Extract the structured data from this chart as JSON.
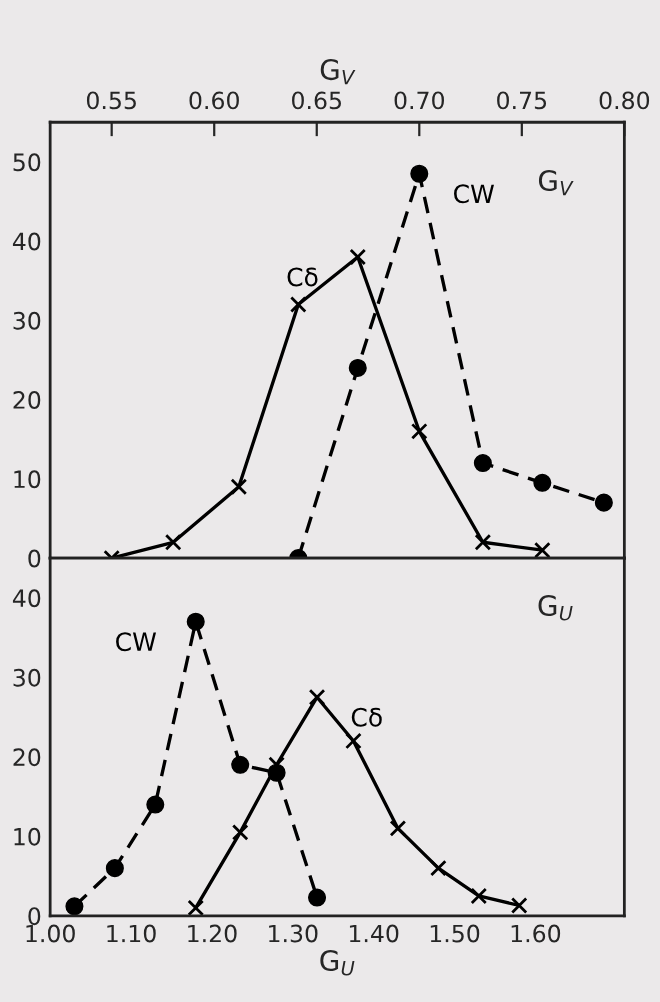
{
  "chart_data": [
    {
      "type": "line",
      "xlabel": "G$_{V}$",
      "xlim": [
        0.52,
        0.8
      ],
      "xticks": [
        0.55,
        {
          "value": 0.6,
          "label": "0.60"
        },
        0.65,
        {
          "value": 0.7,
          "label": "0.70"
        },
        0.75,
        {
          "value": 0.8,
          "label": "0.80"
        }
      ],
      "ylim": [
        0,
        55
      ],
      "yticks": [
        0,
        10,
        20,
        30,
        40,
        50
      ],
      "annotations": [
        "G$_{V}$"
      ],
      "grid": false,
      "legend": false,
      "series": [
        {
          "name": "Cδ",
          "color": "#000000",
          "marker": "cross",
          "line_style": "solid",
          "x": [
            0.55,
            0.58,
            0.612,
            0.641,
            0.67,
            0.7,
            0.731,
            0.76
          ],
          "values": [
            0,
            2,
            9,
            32,
            38,
            16,
            2,
            1
          ]
        },
        {
          "name": "CW",
          "color": "#000000",
          "marker": "circle",
          "line_style": "dashed",
          "x": [
            0.641,
            0.67,
            0.7,
            0.731,
            0.76,
            0.79
          ],
          "values": [
            0,
            24,
            48.5,
            12,
            9.5,
            7
          ]
        }
      ]
    },
    {
      "type": "line",
      "xlabel": "G$_{U}$",
      "xlim": [
        1.0,
        1.71
      ],
      "xticks": [
        {
          "value": 1.0,
          "label": "1.00"
        },
        {
          "value": 1.1,
          "label": "1.10"
        },
        {
          "value": 1.2,
          "label": "1.20"
        },
        {
          "value": 1.3,
          "label": "1.30"
        },
        {
          "value": 1.4,
          "label": "1.40"
        },
        {
          "value": 1.5,
          "label": "1.50"
        },
        {
          "value": 1.6,
          "label": "1.60"
        }
      ],
      "ylim": [
        0,
        45
      ],
      "yticks": [
        0,
        10,
        20,
        30,
        40
      ],
      "annotations": [
        "G$_{U}$"
      ],
      "grid": false,
      "legend": false,
      "series": [
        {
          "name": "CW",
          "color": "#000000",
          "marker": "circle",
          "line_style": "dashed",
          "x": [
            1.03,
            1.08,
            1.13,
            1.18,
            1.235,
            1.28,
            1.33
          ],
          "values": [
            1.2,
            6,
            14,
            37,
            19,
            18,
            2.3
          ]
        },
        {
          "name": "Cδ",
          "color": "#000000",
          "marker": "cross",
          "line_style": "solid",
          "x": [
            1.18,
            1.235,
            1.28,
            1.33,
            1.375,
            1.43,
            1.48,
            1.53,
            1.58
          ],
          "values": [
            1,
            10.5,
            19,
            27.5,
            22,
            11,
            6,
            2.5,
            1.3
          ]
        }
      ]
    }
  ]
}
